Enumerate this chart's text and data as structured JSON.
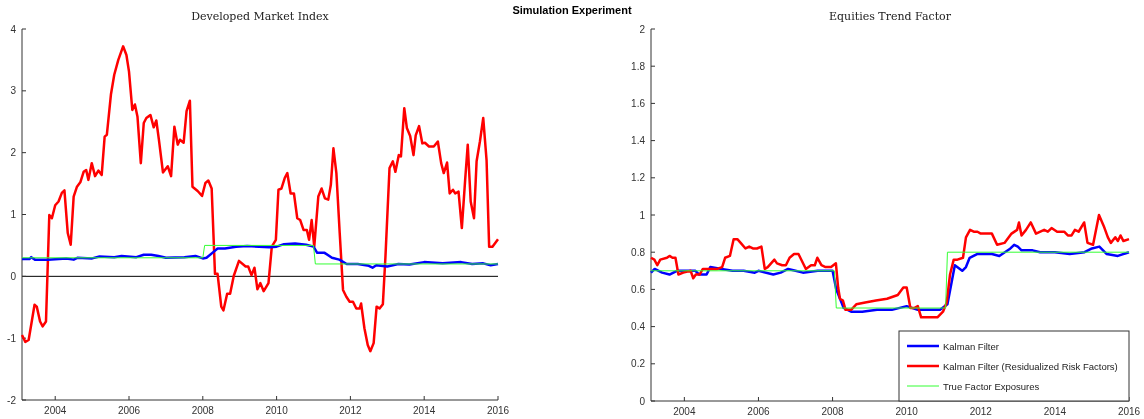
{
  "chart_data": [
    {
      "type": "line",
      "title": "Developed Market Index",
      "annotations": [
        "Simulation Experiment"
      ],
      "xlim": [
        2003.1,
        2016
      ],
      "xticks": [
        2004,
        2006,
        2008,
        2010,
        2012,
        2014,
        2016
      ],
      "ylim": [
        -2,
        4
      ],
      "yticks": [
        -2,
        -1,
        0,
        1,
        2,
        3,
        4
      ],
      "grid": false,
      "ref_lines": [
        {
          "axis": "y",
          "value": 0,
          "color": "#000000"
        }
      ],
      "series": [
        {
          "color": "#ff0000",
          "x": [
            2003.1,
            2003.19,
            2003.28,
            2003.37,
            2003.44,
            2003.5,
            2003.59,
            2003.66,
            2003.75,
            2003.84,
            2003.91,
            2004.0,
            2004.09,
            2004.18,
            2004.25,
            2004.34,
            2004.42,
            2004.5,
            2004.59,
            2004.68,
            2004.77,
            2004.84,
            2004.9,
            2004.99,
            2005.08,
            2005.17,
            2005.26,
            2005.34,
            2005.4,
            2005.51,
            2005.6,
            2005.71,
            2005.84,
            2005.93,
            2006.0,
            2006.09,
            2006.16,
            2006.23,
            2006.32,
            2006.4,
            2006.47,
            2006.58,
            2006.67,
            2006.74,
            2006.81,
            2006.92,
            2007.05,
            2007.14,
            2007.23,
            2007.32,
            2007.38,
            2007.48,
            2007.56,
            2007.65,
            2007.72,
            2007.86,
            2007.98,
            2008.07,
            2008.15,
            2008.24,
            2008.33,
            2008.4,
            2008.5,
            2008.56,
            2008.66,
            2008.74,
            2008.84,
            2008.98,
            2009.16,
            2009.23,
            2009.32,
            2009.4,
            2009.48,
            2009.56,
            2009.65,
            2009.78,
            2009.87,
            2009.98,
            2010.05,
            2010.13,
            2010.22,
            2010.29,
            2010.38,
            2010.47,
            2010.56,
            2010.64,
            2010.73,
            2010.82,
            2010.88,
            2010.95,
            2011.02,
            2011.13,
            2011.22,
            2011.31,
            2011.4,
            2011.47,
            2011.54,
            2011.62,
            2011.71,
            2011.8,
            2011.89,
            2011.98,
            2012.07,
            2012.16,
            2012.25,
            2012.29,
            2012.38,
            2012.47,
            2012.54,
            2012.63,
            2012.71,
            2012.79,
            2012.88,
            2012.95,
            2013.06,
            2013.15,
            2013.22,
            2013.31,
            2013.37,
            2013.46,
            2013.53,
            2013.62,
            2013.71,
            2013.77,
            2013.86,
            2013.95,
            2014.02,
            2014.13,
            2014.26,
            2014.37,
            2014.46,
            2014.53,
            2014.62,
            2014.69,
            2014.78,
            2014.84,
            2014.93,
            2015.02,
            2015.11,
            2015.18,
            2015.26,
            2015.35,
            2015.42,
            2015.51,
            2015.6,
            2015.69,
            2015.76,
            2015.85,
            2016.0
          ],
          "values": [
            -0.95,
            -1.06,
            -1.03,
            -0.71,
            -0.46,
            -0.49,
            -0.73,
            -0.81,
            -0.73,
            0.99,
            0.94,
            1.15,
            1.21,
            1.35,
            1.39,
            0.7,
            0.51,
            1.29,
            1.45,
            1.52,
            1.69,
            1.72,
            1.56,
            1.83,
            1.62,
            1.71,
            1.64,
            2.26,
            2.29,
            2.94,
            3.26,
            3.5,
            3.72,
            3.58,
            3.31,
            2.69,
            2.78,
            2.58,
            1.83,
            2.48,
            2.56,
            2.61,
            2.41,
            2.52,
            2.21,
            1.68,
            1.78,
            1.62,
            2.42,
            2.13,
            2.21,
            2.16,
            2.67,
            2.84,
            1.45,
            1.38,
            1.3,
            1.51,
            1.55,
            1.42,
            0.04,
            0.04,
            -0.49,
            -0.55,
            -0.28,
            -0.28,
            0.01,
            0.25,
            0.16,
            0.16,
            0.02,
            0.14,
            -0.21,
            -0.11,
            -0.24,
            -0.11,
            0.48,
            0.59,
            1.4,
            1.42,
            1.59,
            1.67,
            1.34,
            1.34,
            0.94,
            0.91,
            0.75,
            0.75,
            0.59,
            0.91,
            0.48,
            1.29,
            1.42,
            1.26,
            1.24,
            1.48,
            2.07,
            1.67,
            0.7,
            -0.22,
            -0.33,
            -0.41,
            -0.41,
            -0.52,
            -0.52,
            -0.44,
            -0.84,
            -1.11,
            -1.21,
            -1.08,
            -0.49,
            -0.52,
            -0.45,
            0.32,
            1.75,
            1.86,
            1.69,
            1.96,
            1.94,
            2.72,
            2.4,
            2.27,
            1.96,
            2.28,
            2.43,
            2.15,
            2.16,
            2.1,
            2.1,
            2.18,
            1.83,
            1.67,
            1.84,
            1.34,
            1.4,
            1.34,
            1.37,
            0.78,
            1.56,
            2.13,
            1.21,
            0.94,
            1.86,
            2.18,
            2.56,
            1.88,
            0.48,
            0.48,
            0.6
          ]
        },
        {
          "color": "#0000ff",
          "x": [
            2003.1,
            2003.3,
            2003.35,
            2003.45,
            2003.8,
            2004.3,
            2004.5,
            2004.6,
            2005.0,
            2005.2,
            2005.6,
            2005.8,
            2006.2,
            2006.4,
            2006.6,
            2006.8,
            2007.0,
            2007.5,
            2007.8,
            2008.0,
            2008.1,
            2008.3,
            2008.4,
            2008.6,
            2008.9,
            2009.2,
            2009.8,
            2010.0,
            2010.2,
            2010.5,
            2010.8,
            2011.0,
            2011.1,
            2011.3,
            2011.5,
            2011.7,
            2011.9,
            2012.2,
            2012.5,
            2012.6,
            2012.7,
            2013.0,
            2013.3,
            2013.6,
            2014.0,
            2014.5,
            2015.0,
            2015.3,
            2015.6,
            2015.8,
            2016.0
          ],
          "values": [
            0.28,
            0.28,
            0.31,
            0.27,
            0.27,
            0.29,
            0.27,
            0.3,
            0.29,
            0.32,
            0.31,
            0.33,
            0.31,
            0.35,
            0.35,
            0.33,
            0.3,
            0.31,
            0.33,
            0.29,
            0.3,
            0.4,
            0.45,
            0.45,
            0.48,
            0.49,
            0.47,
            0.48,
            0.52,
            0.53,
            0.51,
            0.48,
            0.38,
            0.38,
            0.3,
            0.27,
            0.2,
            0.2,
            0.17,
            0.14,
            0.18,
            0.16,
            0.2,
            0.19,
            0.23,
            0.21,
            0.23,
            0.2,
            0.21,
            0.18,
            0.2
          ]
        },
        {
          "color": "#33ff33",
          "x": [
            2003.1,
            2008.0,
            2008.05,
            2011.0,
            2011.05,
            2016.0
          ],
          "values": [
            0.3,
            0.3,
            0.5,
            0.5,
            0.2,
            0.2
          ]
        }
      ]
    },
    {
      "type": "line",
      "title": "Equities Trend Factor",
      "xlim": [
        2003.1,
        2016
      ],
      "xticks": [
        2004,
        2006,
        2008,
        2010,
        2012,
        2014,
        2016
      ],
      "ylim": [
        0,
        2
      ],
      "yticks": [
        0,
        0.2,
        0.4,
        0.6,
        0.8,
        1,
        1.2,
        1.4,
        1.6,
        1.8,
        2
      ],
      "grid": false,
      "legend": "bottom right",
      "series": [
        {
          "name": "Kalman Filter",
          "color": "#0000ff",
          "x": [
            2003.1,
            2003.2,
            2003.4,
            2003.6,
            2003.8,
            2004.3,
            2004.4,
            2004.6,
            2004.7,
            2005.0,
            2005.3,
            2005.6,
            2005.9,
            2006.0,
            2006.4,
            2006.6,
            2006.8,
            2007.0,
            2007.2,
            2007.6,
            2007.8,
            2008.0,
            2008.1,
            2008.3,
            2008.5,
            2008.8,
            2009.2,
            2009.6,
            2010.0,
            2010.3,
            2010.9,
            2011.1,
            2011.3,
            2011.5,
            2011.6,
            2011.7,
            2011.9,
            2012.3,
            2012.5,
            2012.8,
            2012.9,
            2013.0,
            2013.1,
            2013.4,
            2013.6,
            2014.0,
            2014.4,
            2014.8,
            2015.0,
            2015.2,
            2015.4,
            2015.7,
            2016.0
          ],
          "values": [
            0.69,
            0.71,
            0.69,
            0.68,
            0.7,
            0.7,
            0.68,
            0.68,
            0.72,
            0.71,
            0.7,
            0.7,
            0.69,
            0.7,
            0.68,
            0.69,
            0.71,
            0.7,
            0.69,
            0.7,
            0.7,
            0.7,
            0.6,
            0.5,
            0.48,
            0.48,
            0.49,
            0.49,
            0.51,
            0.49,
            0.49,
            0.52,
            0.73,
            0.7,
            0.72,
            0.77,
            0.79,
            0.79,
            0.78,
            0.82,
            0.84,
            0.83,
            0.81,
            0.81,
            0.8,
            0.8,
            0.79,
            0.8,
            0.82,
            0.83,
            0.79,
            0.78,
            0.8
          ]
        },
        {
          "name": "Kalman Filter (Residualized Risk Factors)",
          "color": "#ff0000",
          "x": [
            2003.1,
            2003.19,
            2003.27,
            2003.35,
            2003.53,
            2003.6,
            2003.68,
            2003.76,
            2003.84,
            2003.97,
            2004.17,
            2004.24,
            2004.31,
            2004.41,
            2004.5,
            2004.7,
            2004.89,
            2005.02,
            2005.1,
            2005.23,
            2005.33,
            2005.43,
            2005.52,
            2005.65,
            2005.75,
            2005.85,
            2005.96,
            2006.08,
            2006.17,
            2006.25,
            2006.43,
            2006.5,
            2006.64,
            2006.74,
            2006.84,
            2006.96,
            2007.08,
            2007.28,
            2007.42,
            2007.52,
            2007.59,
            2007.7,
            2007.81,
            2007.96,
            2008.09,
            2008.15,
            2008.2,
            2008.28,
            2008.35,
            2008.5,
            2008.64,
            2008.88,
            2009.17,
            2009.47,
            2009.76,
            2009.91,
            2010.0,
            2010.1,
            2010.2,
            2010.3,
            2010.39,
            2010.54,
            2010.83,
            2010.98,
            2011.08,
            2011.17,
            2011.27,
            2011.37,
            2011.52,
            2011.6,
            2011.71,
            2011.81,
            2011.91,
            2012.0,
            2012.3,
            2012.44,
            2012.64,
            2012.83,
            2012.98,
            2013.03,
            2013.1,
            2013.22,
            2013.35,
            2013.49,
            2013.71,
            2013.81,
            2013.91,
            2014.06,
            2014.25,
            2014.35,
            2014.45,
            2014.54,
            2014.64,
            2014.79,
            2014.88,
            2015.03,
            2015.19,
            2015.32,
            2015.43,
            2015.51,
            2015.63,
            2015.7,
            2015.77,
            2015.85,
            2016.0
          ],
          "values": [
            0.77,
            0.76,
            0.73,
            0.76,
            0.77,
            0.78,
            0.77,
            0.77,
            0.68,
            0.69,
            0.7,
            0.66,
            0.68,
            0.68,
            0.71,
            0.71,
            0.71,
            0.72,
            0.77,
            0.78,
            0.87,
            0.87,
            0.85,
            0.82,
            0.83,
            0.82,
            0.82,
            0.83,
            0.71,
            0.72,
            0.76,
            0.74,
            0.73,
            0.73,
            0.77,
            0.79,
            0.79,
            0.71,
            0.73,
            0.73,
            0.77,
            0.73,
            0.72,
            0.72,
            0.74,
            0.61,
            0.55,
            0.54,
            0.49,
            0.49,
            0.52,
            0.53,
            0.54,
            0.55,
            0.57,
            0.61,
            0.61,
            0.5,
            0.5,
            0.51,
            0.45,
            0.45,
            0.45,
            0.48,
            0.53,
            0.68,
            0.76,
            0.76,
            0.77,
            0.88,
            0.92,
            0.91,
            0.91,
            0.9,
            0.9,
            0.84,
            0.85,
            0.9,
            0.92,
            0.96,
            0.89,
            0.92,
            0.96,
            0.9,
            0.92,
            0.91,
            0.93,
            0.91,
            0.91,
            0.89,
            0.89,
            0.92,
            0.91,
            0.96,
            0.85,
            0.84,
            1,
            0.94,
            0.88,
            0.85,
            0.88,
            0.86,
            0.89,
            0.86,
            0.87
          ]
        },
        {
          "name": "True Factor Exposures",
          "color": "#33ff33",
          "x": [
            2003.1,
            2008.05,
            2008.1,
            2011.05,
            2011.1,
            2016.0
          ],
          "values": [
            0.7,
            0.7,
            0.5,
            0.5,
            0.8,
            0.8
          ]
        }
      ]
    }
  ]
}
